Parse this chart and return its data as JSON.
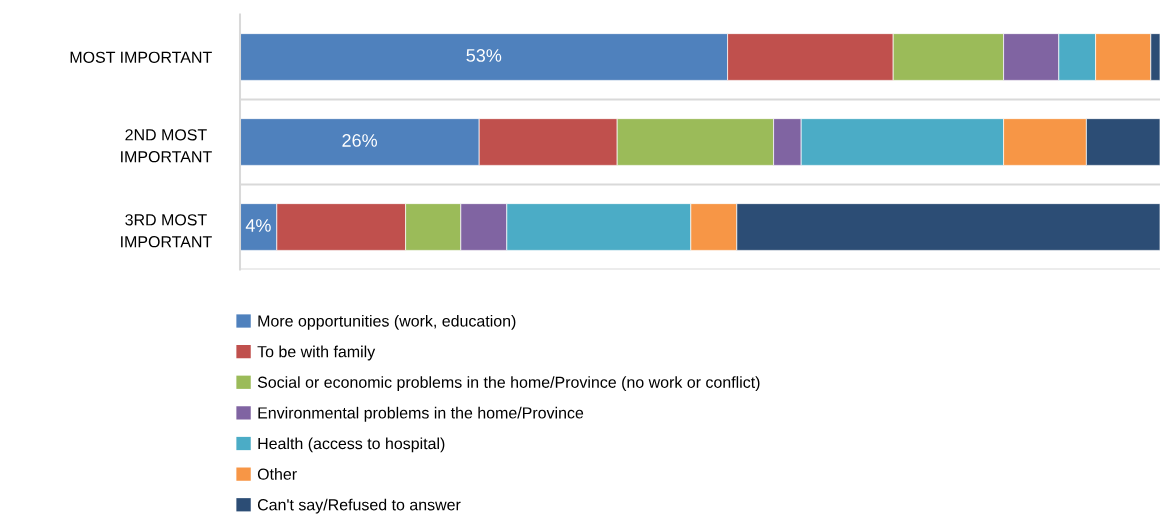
{
  "chart_data": {
    "type": "bar",
    "orientation": "horizontal",
    "stacked": true,
    "categories": [
      "MOST IMPORTANT",
      "2ND MOST\nIMPORTANT",
      "3RD MOST\nIMPORTANT"
    ],
    "xlim": [
      0,
      100
    ],
    "tick_labels": "y",
    "grid": "y",
    "legend": "bottom",
    "series": [
      {
        "name": "More opportunities (work, education)",
        "color": "#4f81bd",
        "values": [
          53,
          26,
          4
        ],
        "value_labels": [
          "53%",
          "26%",
          "4%"
        ]
      },
      {
        "name": "To be with family",
        "color": "#c0504d",
        "values": [
          18,
          15,
          14
        ]
      },
      {
        "name": "Social or economic problems in the home/Province (no work or conflict)",
        "color": "#9bbb59",
        "values": [
          12,
          17,
          6
        ]
      },
      {
        "name": "Environmental problems in the home/Province",
        "color": "#8064a2",
        "values": [
          6,
          3,
          5
        ]
      },
      {
        "name": "Health (access to hospital)",
        "color": "#4bacc6",
        "values": [
          4,
          22,
          20
        ]
      },
      {
        "name": "Other",
        "color": "#f79646",
        "values": [
          6,
          9,
          5
        ]
      },
      {
        "name": "Can't say/Refused to answer",
        "color": "#2c4d75",
        "values": [
          1,
          8,
          46
        ]
      }
    ]
  }
}
